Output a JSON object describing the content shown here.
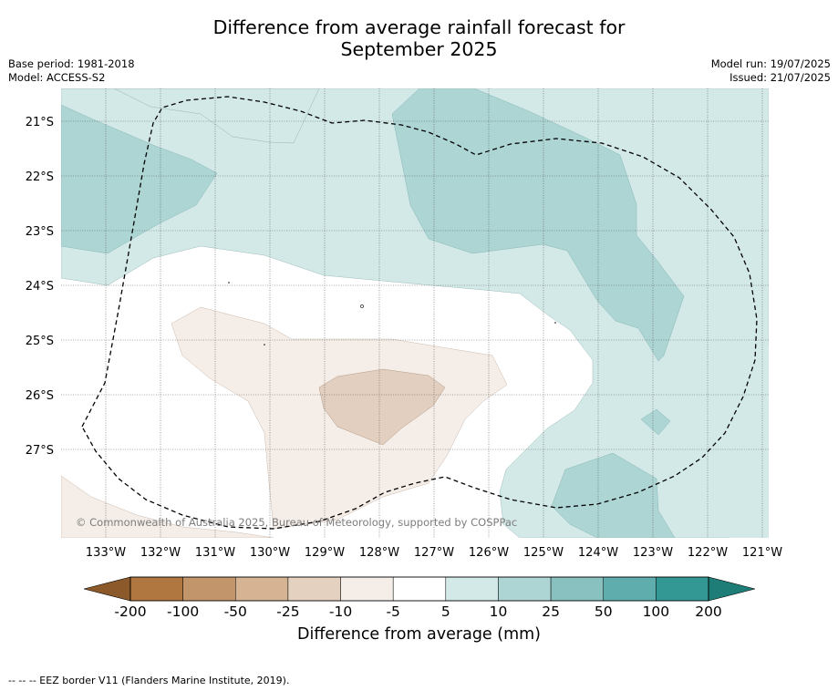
{
  "header": {
    "title_line1": "Difference from average rainfall forecast for",
    "title_line2": "September 2025",
    "base_period": "Base period: 1981-2018",
    "model": "Model: ACCESS-S2",
    "model_run": "Model run: 19/07/2025",
    "issued": "Issued: 21/07/2025"
  },
  "map": {
    "lat_labels": [
      "21°S",
      "22°S",
      "23°S",
      "24°S",
      "25°S",
      "26°S",
      "27°S"
    ],
    "lon_labels": [
      "133°W",
      "132°W",
      "131°W",
      "130°W",
      "129°W",
      "128°W",
      "127°W",
      "126°W",
      "125°W",
      "124°W",
      "123°W",
      "122°W",
      "121°W"
    ],
    "copyright": "© Commonwealth of Australia 2025, Bureau of Meteorology, supported by COSPPac",
    "fill_colors": {
      "light_teal": "#d3e9e8",
      "mid_teal": "#acd5d4",
      "light_brown": "#f5ede7",
      "mid_brown": "#e2cfbf",
      "eez_line": "#000000"
    }
  },
  "colorbar": {
    "title": "Difference from average (mm)",
    "tick_labels": [
      "-200",
      "-100",
      "-50",
      "-25",
      "-10",
      "-5",
      "5",
      "10",
      "25",
      "50",
      "100",
      "200"
    ],
    "colors": [
      "#8c5a2a",
      "#b07840",
      "#c3956a",
      "#d6b493",
      "#e5d1c0",
      "#f5eee8",
      "#ffffff",
      "#d3e9e8",
      "#acd5d4",
      "#88c1c0",
      "#5fadad",
      "#339893",
      "#1e7d77"
    ]
  },
  "footnote": "--  --  -- EEZ border V11 (Flanders Marine Institute, 2019)."
}
